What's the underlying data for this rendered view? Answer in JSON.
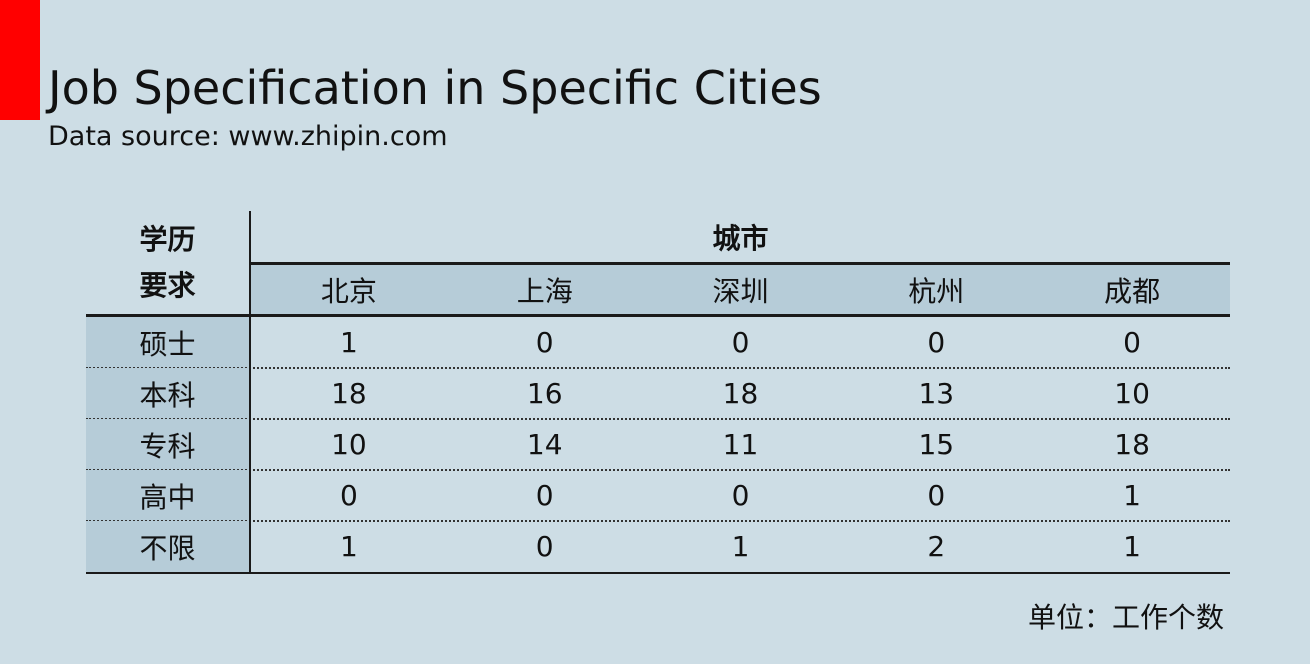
{
  "title": "Job Specification in Specific Cities",
  "subtitle": "Data source: www.zhipin.com",
  "unit_note": "单位：工作个数",
  "accent_color": "#ff0000",
  "chart_data": {
    "type": "table",
    "corner_header": [
      "学历",
      "要求"
    ],
    "group_header": "城市",
    "columns": [
      "北京",
      "上海",
      "深圳",
      "杭州",
      "成都"
    ],
    "rows": [
      {
        "label": "硕士",
        "values": [
          1,
          0,
          0,
          0,
          0
        ]
      },
      {
        "label": "本科",
        "values": [
          18,
          16,
          18,
          13,
          10
        ]
      },
      {
        "label": "专科",
        "values": [
          10,
          14,
          11,
          15,
          18
        ]
      },
      {
        "label": "高中",
        "values": [
          0,
          0,
          0,
          0,
          1
        ]
      },
      {
        "label": "不限",
        "values": [
          1,
          0,
          1,
          2,
          1
        ]
      }
    ]
  }
}
